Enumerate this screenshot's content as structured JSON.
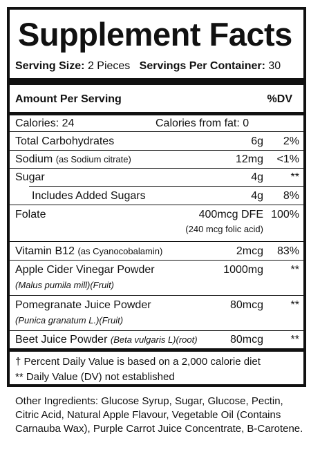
{
  "title": "Supplement Facts",
  "serving": {
    "size_label": "Serving Size:",
    "size_value": "2 Pieces",
    "per_container_label": "Servings Per Container:",
    "per_container_value": "30"
  },
  "header": {
    "amount_label": "Amount Per Serving",
    "dv_label": "%DV"
  },
  "calories": {
    "label": "Calories: 24",
    "fat_label": "Calories from fat: 0"
  },
  "nutrients": [
    {
      "name": "Total Carbohydrates",
      "amount": "6g",
      "dv": "2%"
    },
    {
      "name": "Sodium",
      "detail": "(as Sodium citrate)",
      "amount": "12mg",
      "dv": "<1%"
    },
    {
      "name": "Sugar",
      "amount": "4g",
      "dv": "**"
    },
    {
      "name": "Includes Added Sugars",
      "amount": "4g",
      "dv": "8%"
    },
    {
      "name": "Folate",
      "amount": "400mcg DFE",
      "amount_detail": "(240 mcg folic acid)",
      "dv": "100%"
    },
    {
      "name": "Vitamin B12",
      "detail": "(as Cyanocobalamin)",
      "amount": "2mcg",
      "dv": "83%"
    },
    {
      "name": "Apple Cider Vinegar Powder",
      "detail": "(Malus pumila mill)(Fruit)",
      "amount": "1000mg",
      "dv": "**"
    },
    {
      "name": "Pomegranate Juice Powder",
      "detail": "(Punica granatum L.)(Fruit)",
      "amount": "80mcg",
      "dv": "**"
    },
    {
      "name": "Beet Juice Powder",
      "detail": "(Beta vulgaris L)(root)",
      "amount": "80mcg",
      "dv": "**"
    }
  ],
  "footnotes": [
    "† Percent Daily Value is based on a 2,000 calorie diet",
    "** Daily Value (DV) not established"
  ],
  "other_ingredients": "Other Ingredients: Glucose Syrup, Sugar, Glucose, Pectin, Citric Acid, Natural Apple Flavour, Vegetable Oil (Contains Carnauba Wax), Purple Carrot Juice Concentrate, B-Carotene."
}
